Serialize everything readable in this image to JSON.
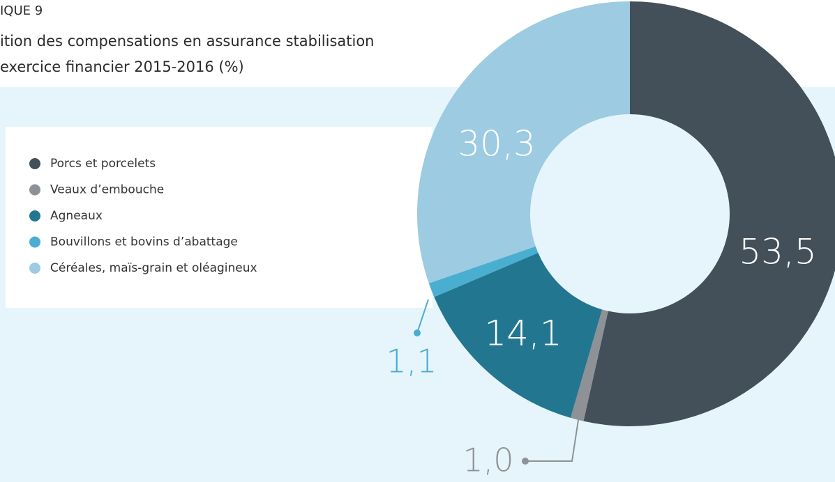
{
  "chart_data": {
    "type": "donut",
    "label": "IQUE 9",
    "title": "ition des compensations en assurance stabilisation",
    "subtitle": "exercice financier 2015-2016 (%)",
    "categories": [
      "Porcs et porcelets",
      "Veaux d’embouche",
      "Agneaux",
      "Bouvillons et bovins d’abattage",
      "Céréales, maïs-grain et oléagineux"
    ],
    "values": [
      53.5,
      1.0,
      14.1,
      1.1,
      30.3
    ],
    "value_labels": [
      "53,5",
      "1,0",
      "14,1",
      "1,1",
      "30,3"
    ],
    "colors": [
      "#434f59",
      "#8e9196",
      "#23768f",
      "#4aaed1",
      "#9ccbe2"
    ]
  }
}
